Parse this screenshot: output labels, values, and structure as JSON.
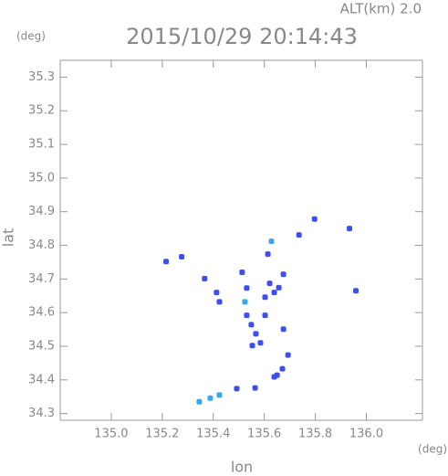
{
  "chart_data": {
    "type": "scatter",
    "title": "2015/10/29 20:14:43",
    "subtitle": "ALT(km) 2.0",
    "y_unit": "(deg)",
    "x_unit": "(deg)",
    "x_label": "lon",
    "y_label": "lat",
    "xlim": [
      134.8,
      136.22
    ],
    "ylim": [
      34.28,
      35.35
    ],
    "xticks": [
      {
        "value": 135.0,
        "label": "135.0"
      },
      135.2,
      135.4,
      135.6,
      135.8,
      {
        "value": 136.0,
        "label": "136.0"
      }
    ],
    "yticks": [
      34.3,
      34.4,
      34.5,
      34.6,
      34.7,
      34.8,
      34.9,
      {
        "value": 35.0,
        "label": "35.0"
      },
      35.1,
      35.2,
      35.3
    ],
    "series": [
      {
        "color": "#3c4ef0",
        "x": [
          135.215,
          135.276,
          135.366,
          135.413,
          135.424,
          135.513,
          135.531,
          135.549,
          135.567,
          135.553,
          135.585,
          135.603,
          135.621,
          135.639,
          135.657,
          135.614,
          135.531,
          135.603,
          135.675,
          135.693,
          135.671,
          135.65,
          135.639,
          135.564,
          135.492,
          135.797,
          135.934,
          135.959,
          135.736,
          135.675
        ],
        "y": [
          34.752,
          34.766,
          34.701,
          34.66,
          34.632,
          34.72,
          34.592,
          34.564,
          34.537,
          34.502,
          34.51,
          34.646,
          34.687,
          34.66,
          34.674,
          34.774,
          34.673,
          34.592,
          34.551,
          34.474,
          34.433,
          34.414,
          34.409,
          34.376,
          34.374,
          34.878,
          34.85,
          34.665,
          34.831,
          34.714
        ]
      },
      {
        "color": "#3aa6e6",
        "x": [
          135.524,
          135.628,
          135.424,
          135.388,
          135.345
        ],
        "y": [
          34.632,
          34.812,
          34.355,
          34.346,
          34.335
        ]
      }
    ]
  }
}
